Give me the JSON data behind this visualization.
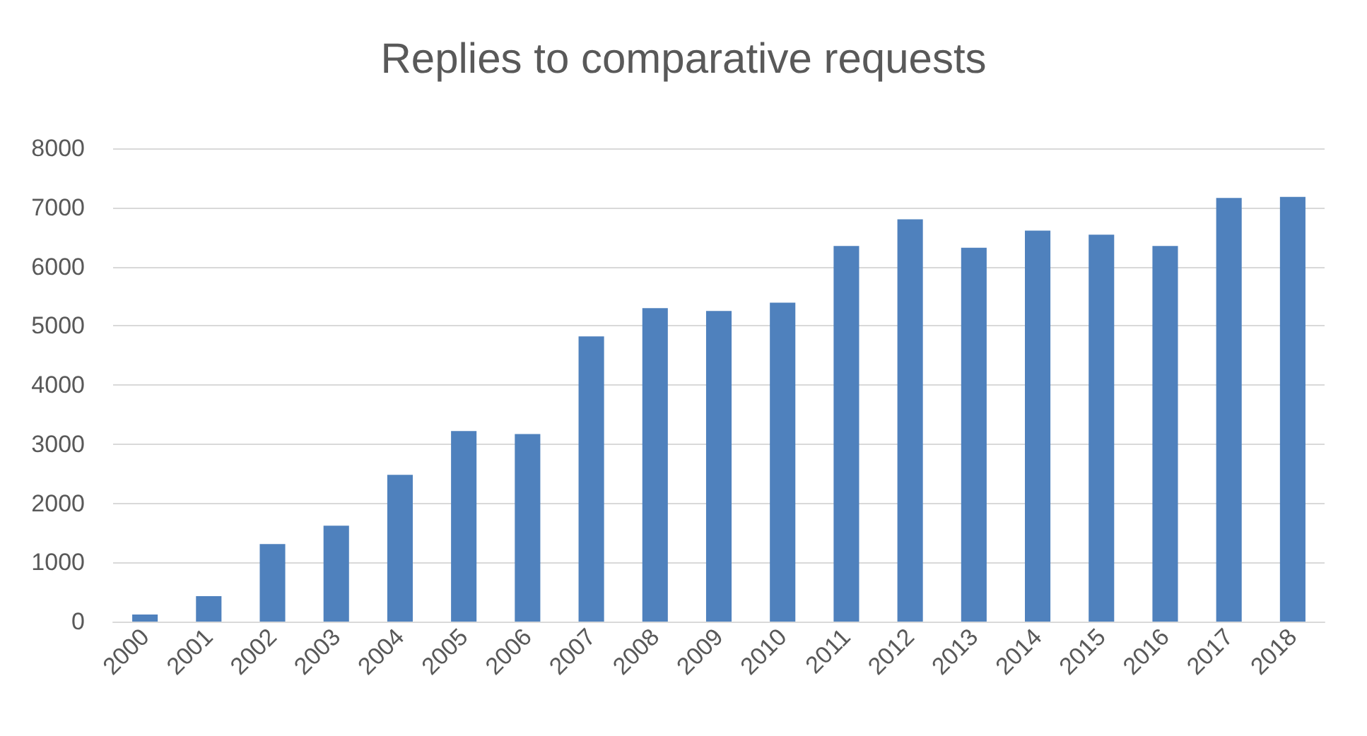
{
  "chart_data": {
    "type": "bar",
    "title": "Replies to comparative requests",
    "categories": [
      "2000",
      "2001",
      "2002",
      "2003",
      "2004",
      "2005",
      "2006",
      "2007",
      "2008",
      "2009",
      "2010",
      "2011",
      "2012",
      "2013",
      "2014",
      "2015",
      "2016",
      "2017",
      "2018"
    ],
    "values": [
      120,
      430,
      1310,
      1620,
      2480,
      3220,
      3170,
      4820,
      5300,
      5250,
      5390,
      6350,
      6800,
      6320,
      6610,
      6540,
      6350,
      7160,
      7180
    ],
    "color": "#4f81bd",
    "ylim": [
      0,
      8000
    ],
    "yticks": [
      0,
      1000,
      2000,
      3000,
      4000,
      5000,
      6000,
      7000,
      8000
    ],
    "grid": "y"
  }
}
